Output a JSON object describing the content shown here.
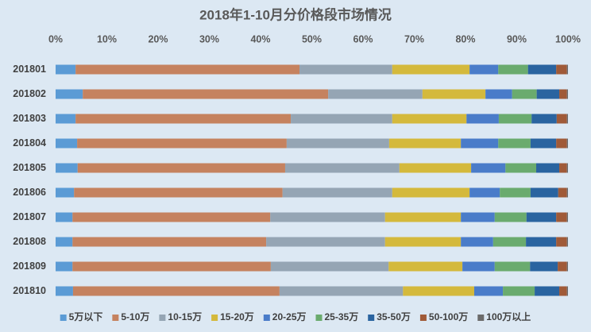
{
  "chart_data": {
    "type": "bar",
    "orientation": "horizontal",
    "stacked": true,
    "title": "2018年1-10月分价格段市场情况",
    "categories": [
      "201801",
      "201802",
      "201803",
      "201804",
      "201805",
      "201806",
      "201807",
      "201808",
      "201809",
      "201810"
    ],
    "series": [
      {
        "name": "5万以下",
        "color": "#5b9bd5",
        "values": [
          3.9,
          5.3,
          3.9,
          4.2,
          4.3,
          3.6,
          3.3,
          3.3,
          3.3,
          3.4
        ]
      },
      {
        "name": "5-10万",
        "color": "#c5825f",
        "values": [
          43.7,
          47.9,
          42.0,
          40.9,
          40.5,
          40.7,
          38.6,
          37.8,
          38.7,
          40.3
        ]
      },
      {
        "name": "10-15万",
        "color": "#95a5b4",
        "values": [
          18.1,
          18.4,
          19.8,
          20.0,
          22.3,
          21.4,
          22.4,
          23.2,
          23.0,
          24.1
        ]
      },
      {
        "name": "15-20万",
        "color": "#d4b93c",
        "values": [
          15.1,
          12.3,
          14.5,
          14.0,
          14.0,
          15.1,
          14.8,
          14.8,
          14.4,
          13.9
        ]
      },
      {
        "name": "20-25万",
        "color": "#4a7cc9",
        "values": [
          5.6,
          5.2,
          6.3,
          7.3,
          6.7,
          5.9,
          6.6,
          6.3,
          6.3,
          5.6
        ]
      },
      {
        "name": "25-35万",
        "color": "#6aab6e",
        "values": [
          5.8,
          4.8,
          6.4,
          6.3,
          6.0,
          6.0,
          6.2,
          6.4,
          6.9,
          6.2
        ]
      },
      {
        "name": "35-50万",
        "color": "#2a64a0",
        "values": [
          5.5,
          4.4,
          4.9,
          5.0,
          4.5,
          5.4,
          5.8,
          5.9,
          5.4,
          4.8
        ]
      },
      {
        "name": "50-100万",
        "color": "#a05a38",
        "values": [
          2.1,
          1.5,
          2.0,
          2.1,
          1.5,
          1.7,
          2.1,
          2.1,
          1.8,
          1.5
        ]
      },
      {
        "name": "100万以上",
        "color": "#6b6b6b",
        "values": [
          0.2,
          0.2,
          0.2,
          0.2,
          0.2,
          0.2,
          0.2,
          0.2,
          0.2,
          0.2
        ]
      }
    ],
    "xlim": [
      0,
      100
    ],
    "xticks": [
      {
        "value": 0,
        "label": "0%"
      },
      {
        "value": 10,
        "label": "10%"
      },
      {
        "value": 20,
        "label": "20%"
      },
      {
        "value": 30,
        "label": "30%"
      },
      {
        "value": 40,
        "label": "40%"
      },
      {
        "value": 50,
        "label": "50%"
      },
      {
        "value": 60,
        "label": "60%"
      },
      {
        "value": 70,
        "label": "70%"
      },
      {
        "value": 80,
        "label": "80%"
      },
      {
        "value": 90,
        "label": "90%"
      },
      {
        "value": 100,
        "label": "100%"
      }
    ],
    "grid": false,
    "legend": "bottom"
  }
}
